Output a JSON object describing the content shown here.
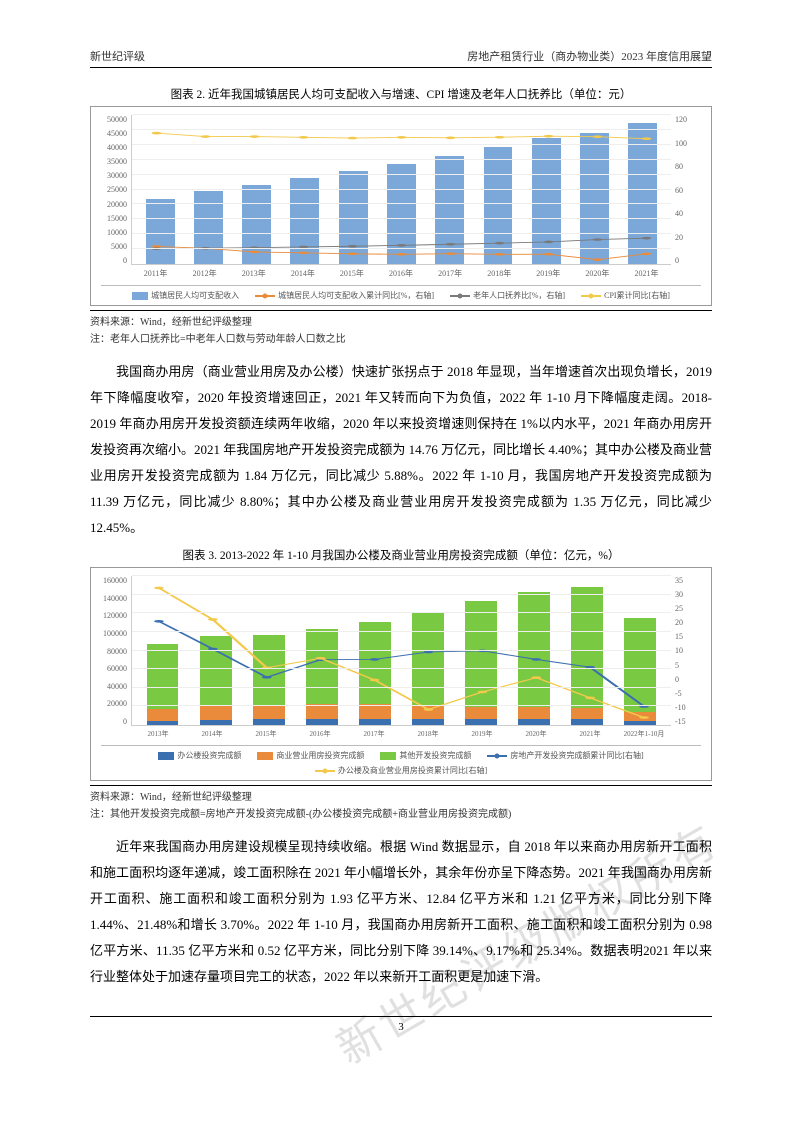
{
  "header": {
    "left": "新世纪评级",
    "right": "房地产租赁行业（商办物业类）2023 年度信用展望"
  },
  "chart2": {
    "title": "图表 2. 近年我国城镇居民人均可支配收入与增速、CPI 增速及老年人口抚养比（单位：元）",
    "type": "bar+line",
    "background_color": "#ffffff",
    "grid_color": "#eeeeee",
    "y_left": {
      "min": 0,
      "max": 50000,
      "step": 5000,
      "labels": [
        "0",
        "5000",
        "10000",
        "15000",
        "20000",
        "25000",
        "30000",
        "35000",
        "40000",
        "45000",
        "50000"
      ]
    },
    "y_right": {
      "min": 0,
      "max": 120,
      "step": 20,
      "labels": [
        "0",
        "20",
        "40",
        "60",
        "80",
        "100",
        "120"
      ]
    },
    "categories": [
      "2011年",
      "2012年",
      "2013年",
      "2014年",
      "2015年",
      "2016年",
      "2017年",
      "2018年",
      "2019年",
      "2020年",
      "2021年"
    ],
    "bars": {
      "label": "城镇居民人均可支配收入",
      "color": "#7ba8d9",
      "values": [
        21810,
        24565,
        26467,
        28844,
        31195,
        33616,
        36396,
        39251,
        42359,
        43834,
        47412
      ]
    },
    "lines": [
      {
        "label": "城镇居民人均可支配收入累计同比[%，右轴]",
        "color": "#e98b3a",
        "marker": "circle",
        "values": [
          14.1,
          12.6,
          9.7,
          9.0,
          8.2,
          7.8,
          8.3,
          7.8,
          7.9,
          3.5,
          8.2
        ]
      },
      {
        "label": "老年人口抚养比[%，右轴]",
        "color": "#7a7a7a",
        "marker": "diamond",
        "values": [
          12.3,
          12.7,
          13.1,
          13.7,
          14.3,
          15.0,
          15.9,
          16.8,
          17.8,
          19.7,
          20.8
        ]
      },
      {
        "label": "CPI累计同比[右轴]",
        "color": "#f3c94b",
        "marker": "triangle",
        "values": [
          105.4,
          102.6,
          102.6,
          102.0,
          101.4,
          102.0,
          101.6,
          102.1,
          102.9,
          102.5,
          100.9
        ]
      }
    ],
    "source": "资料来源：Wind，经新世纪评级整理",
    "note": "注：老年人口抚养比=中老年人口数与劳动年龄人口数之比"
  },
  "para1": "我国商办用房（商业营业用房及办公楼）快速扩张拐点于 2018 年显现，当年增速首次出现负增长，2019 年下降幅度收窄，2020 年投资增速回正，2021 年又转而向下为负值，2022 年 1-10 月下降幅度走阔。2018-2019 年商办用房开发投资额连续两年收缩，2020 年以来投资增速则保持在 1%以内水平，2021 年商办用房开发投资再次缩小。2021 年我国房地产开发投资完成额为 14.76 万亿元，同比增长 4.40%；其中办公楼及商业营业用房开发投资完成额为 1.84 万亿元，同比减少 5.88%。2022 年 1-10 月，我国房地产开发投资完成额为 11.39 万亿元，同比减少 8.80%；其中办公楼及商业营业用房开发投资完成额为 1.35 万亿元，同比减少 12.45%。",
  "chart3": {
    "title": "图表 3. 2013-2022 年 1-10 月我国办公楼及商业营业用房投资完成额（单位：亿元，%）",
    "type": "stacked-bar+line",
    "background_color": "#ffffff",
    "grid_color": "#eeeeee",
    "y_left": {
      "min": 0,
      "max": 160000,
      "step": 20000,
      "labels": [
        "0",
        "20000",
        "40000",
        "60000",
        "80000",
        "100000",
        "120000",
        "140000",
        "160000"
      ]
    },
    "y_right": {
      "min": -15,
      "max": 35,
      "step": 5,
      "labels": [
        "-15",
        "-10",
        "-5",
        "0",
        "5",
        "10",
        "15",
        "20",
        "25",
        "30",
        "35"
      ]
    },
    "categories": [
      "2013年",
      "2014年",
      "2015年",
      "2016年",
      "2017年",
      "2018年",
      "2019年",
      "2020年",
      "2021年",
      "2022年1-10月"
    ],
    "stacks": [
      {
        "label": "办公楼投资完成额",
        "color": "#3a6fb0",
        "values": [
          4652,
          5641,
          6210,
          6533,
          6761,
          5996,
          6163,
          6494,
          5974,
          4413
        ]
      },
      {
        "label": "商业营业用房投资完成额",
        "color": "#e98b3a",
        "values": [
          11945,
          14346,
          14607,
          15838,
          15640,
          14177,
          13226,
          13076,
          12445,
          9134
        ]
      },
      {
        "label": "其他开发投资完成额",
        "color": "#7ac943",
        "values": [
          69639,
          75049,
          75163,
          80226,
          87490,
          100031,
          112809,
          121824,
          129183,
          100391
        ]
      }
    ],
    "lines": [
      {
        "label": "房地产开发投资完成额累计同比[右轴]",
        "color": "#3a6fb0",
        "marker": "square",
        "values": [
          19.8,
          10.5,
          1.0,
          6.9,
          7.0,
          9.5,
          9.9,
          7.0,
          4.4,
          -8.8
        ]
      },
      {
        "label": "办公楼及商业营业用房投资累计同比[右轴]",
        "color": "#f3c94b",
        "marker": "circle",
        "values": [
          31.0,
          20.4,
          4.2,
          7.4,
          0.1,
          -9.8,
          -3.9,
          0.9,
          -5.9,
          -12.5
        ]
      }
    ],
    "source": "资料来源：Wind，经新世纪评级整理",
    "note": "注：其他开发投资完成额=房地产开发投资完成额-(办公楼投资完成额+商业营业用房投资完成额)"
  },
  "para2": "近年来我国商办用房建设规模呈现持续收缩。根据 Wind 数据显示，自 2018 年以来商办用房新开工面积和施工面积均逐年递减，竣工面积除在 2021 年小幅增长外，其余年份亦呈下降态势。2021 年我国商办用房新开工面积、施工面积和竣工面积分别为 1.93 亿平方米、12.84 亿平方米和 1.21 亿平方米，同比分别下降 1.44%、21.48%和增长 3.70%。2022 年 1-10 月，我国商办用房新开工面积、施工面积和竣工面积分别为 0.98 亿平方米、11.35 亿平方米和 0.52 亿平方米，同比分别下降 39.14%、9.17%和 25.34%。数据表明2021 年以来行业整体处于加速存量项目完工的状态，2022 年以来新开工面积更是加速下滑。",
  "page_number": "3",
  "watermark": "新世纪评级版权所有"
}
